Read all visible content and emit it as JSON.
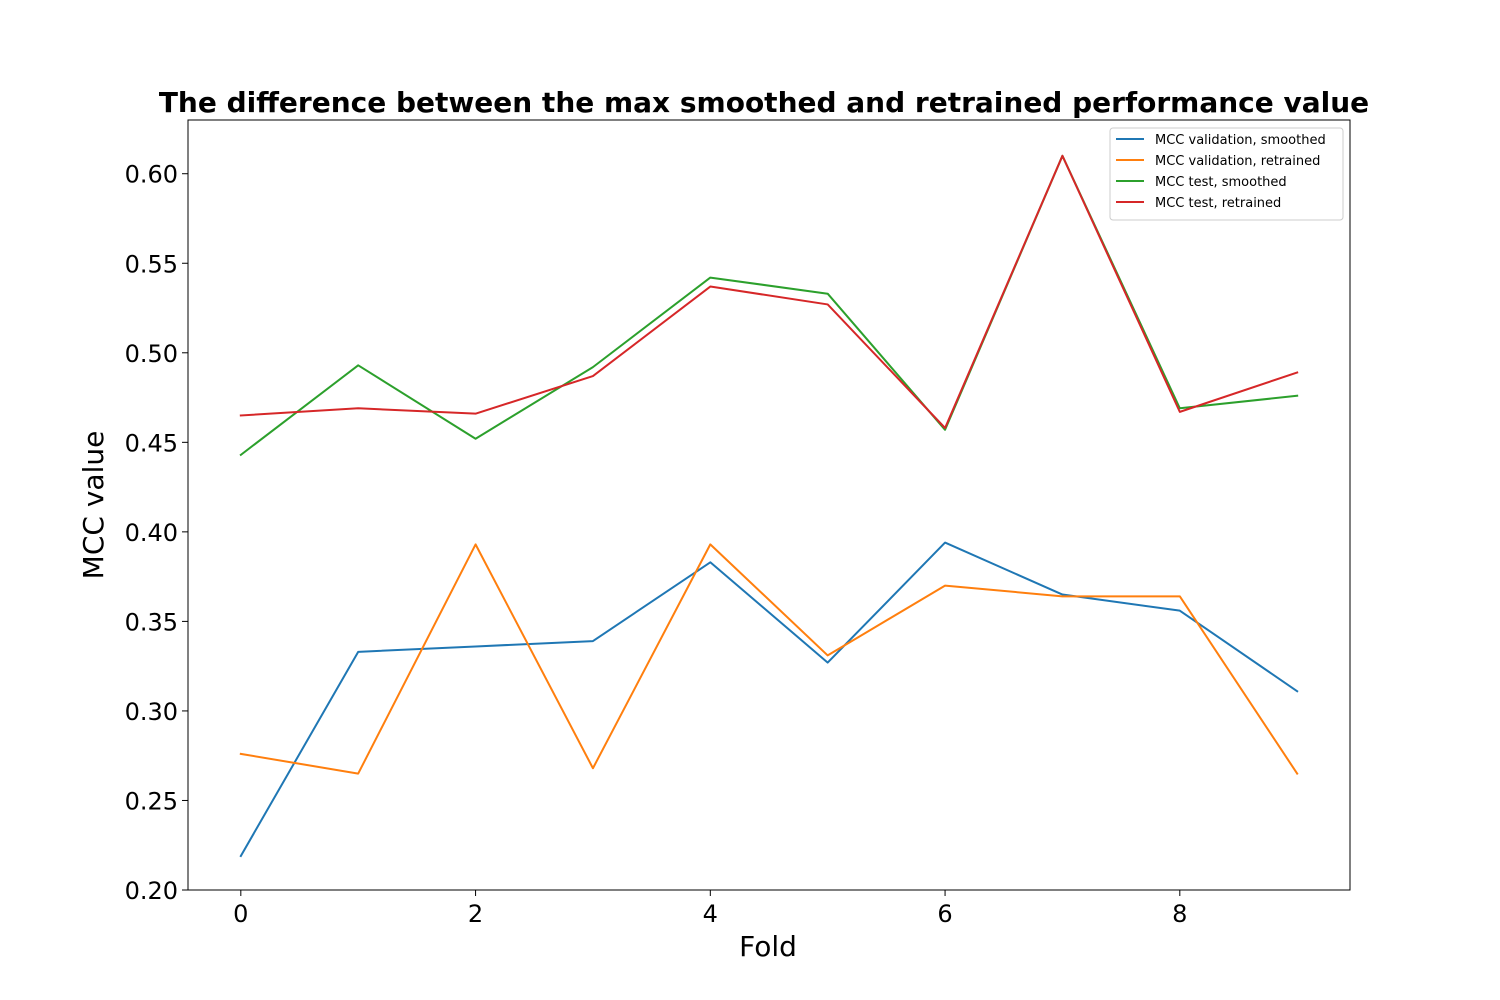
{
  "chart_data": {
    "type": "line",
    "title": "The difference between the max smoothed and retrained performance value",
    "xlabel": "Fold",
    "ylabel": "MCC value",
    "x": [
      0,
      1,
      2,
      3,
      4,
      5,
      6,
      7,
      8,
      9
    ],
    "xlim": [
      -0.45,
      9.45
    ],
    "ylim": [
      0.2,
      0.63
    ],
    "xticks": [
      "0",
      "2",
      "4",
      "6",
      "8"
    ],
    "yticks": [
      "0.20",
      "0.25",
      "0.30",
      "0.35",
      "0.40",
      "0.45",
      "0.50",
      "0.55",
      "0.60"
    ],
    "grid": false,
    "legend_position": "top-right",
    "series": [
      {
        "name": "MCC validation, smoothed",
        "color": "#1f77b4",
        "values": [
          0.219,
          0.333,
          0.336,
          0.339,
          0.383,
          0.327,
          0.394,
          0.365,
          0.356,
          0.311
        ]
      },
      {
        "name": "MCC validation, retrained",
        "color": "#ff7f0e",
        "values": [
          0.276,
          0.265,
          0.393,
          0.268,
          0.393,
          0.331,
          0.37,
          0.364,
          0.364,
          0.265
        ]
      },
      {
        "name": "MCC test, smoothed",
        "color": "#2ca02c",
        "values": [
          0.443,
          0.493,
          0.452,
          0.492,
          0.542,
          0.533,
          0.457,
          0.61,
          0.469,
          0.476
        ]
      },
      {
        "name": "MCC test, retrained",
        "color": "#d62728",
        "values": [
          0.465,
          0.469,
          0.466,
          0.487,
          0.537,
          0.527,
          0.458,
          0.61,
          0.467,
          0.489
        ]
      }
    ]
  }
}
